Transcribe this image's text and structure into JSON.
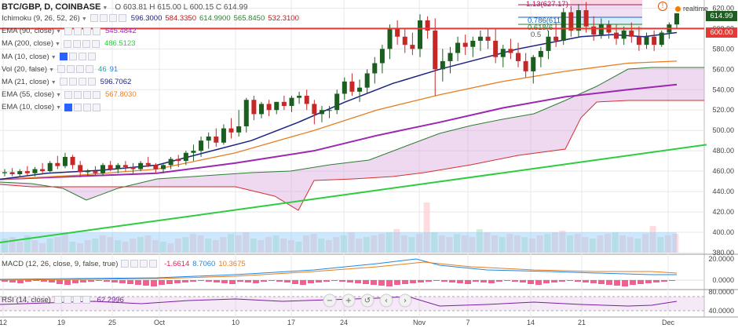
{
  "header": {
    "symbol": "BTC/GBP, D, COINBASE",
    "ohlc": "O 603.81 H 615.00 L 600.15 C 614.99"
  },
  "realtime_label": "realtime",
  "indicators": [
    {
      "name": "Ichimoku (9, 26, 52, 26)",
      "values": [
        "596.3000",
        "584.3350",
        "614.9900",
        "565.8450",
        "532.3100"
      ],
      "colors": [
        "#1a237e",
        "#b71c1c",
        "#2e7d32",
        "#2e7d32",
        "#b71c1c"
      ]
    },
    {
      "name": "EMA (90, close)",
      "values": [
        "545.4842"
      ],
      "colors": [
        "#9c27b0"
      ]
    },
    {
      "name": "MA (200, close)",
      "values": [
        "486.5123"
      ],
      "colors": [
        "#2ecc40"
      ]
    },
    {
      "name": "MA (10, close)",
      "values": [],
      "colors": []
    },
    {
      "name": "Vol (20, false)",
      "values": [
        "46",
        "91"
      ],
      "colors": [
        "#26a69a",
        "#1e88e5"
      ]
    },
    {
      "name": "MA (21, close)",
      "values": [
        "596.7062"
      ],
      "colors": [
        "#1a237e"
      ]
    },
    {
      "name": "EMA (55, close)",
      "values": [
        "567.8030"
      ],
      "colors": [
        "#e67e22"
      ]
    },
    {
      "name": "EMA (10, close)",
      "values": [],
      "colors": []
    }
  ],
  "fib_labels": [
    "1.13(627.17)",
    "0.786(611",
    "0.618(6",
    "0.5"
  ],
  "price_labels": {
    "last": "614.99",
    "level": "600.00"
  },
  "macd": {
    "label": "MACD (12, 26, close, 9, false, true)",
    "values": [
      "-1.6614",
      "8.7060",
      "10.3675"
    ],
    "colors": [
      "#e91e63",
      "#1e88e5",
      "#e67e22"
    ]
  },
  "rsi": {
    "label": "RSI (14, close)",
    "values": [
      "62.2996"
    ],
    "colors": [
      "#7b1fa2"
    ]
  },
  "colors": {
    "up": "#1b5e20",
    "down": "#c62828",
    "horizontal_line": "#e53935",
    "grid": "#e8e8e8"
  },
  "chart_data": {
    "type": "line",
    "subtype": "candlestick",
    "x_tick_labels": [
      "12",
      "19",
      "25",
      "Oct",
      "10",
      "17",
      "24",
      "Nov",
      "7",
      "14",
      "21",
      "Dec"
    ],
    "y_tick_labels": [
      "380.00",
      "400.00",
      "420.00",
      "440.00",
      "460.00",
      "480.00",
      "500.00",
      "520.00",
      "540.00",
      "560.00",
      "580.00",
      "600.00",
      "620.00"
    ],
    "ylim": [
      380,
      628
    ],
    "candles": [
      [
        458,
        462,
        455,
        459
      ],
      [
        459,
        463,
        455,
        457
      ],
      [
        457,
        462,
        454,
        460
      ],
      [
        460,
        465,
        456,
        458
      ],
      [
        458,
        464,
        455,
        462
      ],
      [
        462,
        468,
        458,
        460
      ],
      [
        460,
        470,
        459,
        468
      ],
      [
        468,
        475,
        462,
        465
      ],
      [
        465,
        478,
        463,
        474
      ],
      [
        474,
        476,
        462,
        466
      ],
      [
        466,
        470,
        454,
        459
      ],
      [
        459,
        462,
        455,
        460
      ],
      [
        460,
        465,
        456,
        458
      ],
      [
        458,
        468,
        456,
        466
      ],
      [
        466,
        470,
        460,
        462
      ],
      [
        462,
        468,
        458,
        466
      ],
      [
        466,
        470,
        460,
        464
      ],
      [
        464,
        468,
        458,
        462
      ],
      [
        462,
        470,
        460,
        468
      ],
      [
        468,
        474,
        464,
        466
      ],
      [
        466,
        468,
        458,
        462
      ],
      [
        462,
        468,
        458,
        466
      ],
      [
        466,
        474,
        462,
        472
      ],
      [
        472,
        476,
        464,
        470
      ],
      [
        470,
        480,
        466,
        478
      ],
      [
        478,
        486,
        470,
        480
      ],
      [
        480,
        494,
        474,
        490
      ],
      [
        490,
        498,
        482,
        494
      ],
      [
        494,
        502,
        484,
        488
      ],
      [
        488,
        506,
        486,
        502
      ],
      [
        502,
        512,
        492,
        498
      ],
      [
        498,
        520,
        494,
        504
      ],
      [
        504,
        532,
        498,
        530
      ],
      [
        530,
        534,
        510,
        516
      ],
      [
        516,
        528,
        512,
        526
      ],
      [
        526,
        530,
        514,
        520
      ],
      [
        520,
        528,
        516,
        528
      ],
      [
        528,
        534,
        520,
        524
      ],
      [
        524,
        534,
        518,
        532
      ],
      [
        532,
        538,
        526,
        534
      ],
      [
        534,
        540,
        520,
        526
      ],
      [
        526,
        530,
        506,
        516
      ],
      [
        516,
        524,
        508,
        520
      ],
      [
        520,
        524,
        512,
        520
      ],
      [
        520,
        540,
        516,
        536
      ],
      [
        536,
        552,
        530,
        548
      ],
      [
        548,
        556,
        534,
        538
      ],
      [
        538,
        550,
        528,
        542
      ],
      [
        542,
        560,
        536,
        556
      ],
      [
        556,
        572,
        546,
        566
      ],
      [
        566,
        584,
        556,
        580
      ],
      [
        580,
        604,
        570,
        600
      ],
      [
        600,
        608,
        584,
        592
      ],
      [
        592,
        600,
        576,
        584
      ],
      [
        584,
        596,
        574,
        580
      ],
      [
        580,
        614,
        572,
        608
      ],
      [
        608,
        612,
        590,
        598
      ],
      [
        598,
        610,
        534,
        560
      ],
      [
        560,
        580,
        548,
        568
      ],
      [
        568,
        582,
        556,
        576
      ],
      [
        576,
        592,
        568,
        586
      ],
      [
        586,
        594,
        574,
        582
      ],
      [
        582,
        592,
        572,
        588
      ],
      [
        588,
        598,
        578,
        592
      ],
      [
        592,
        600,
        580,
        588
      ],
      [
        588,
        600,
        566,
        572
      ],
      [
        572,
        584,
        562,
        580
      ],
      [
        580,
        590,
        570,
        576
      ],
      [
        576,
        586,
        562,
        568
      ],
      [
        568,
        576,
        552,
        558
      ],
      [
        558,
        574,
        546,
        572
      ],
      [
        572,
        582,
        562,
        578
      ],
      [
        578,
        598,
        570,
        592
      ],
      [
        592,
        606,
        582,
        588
      ],
      [
        588,
        620,
        584,
        616
      ],
      [
        616,
        622,
        592,
        598
      ],
      [
        598,
        624,
        592,
        618
      ],
      [
        618,
        626,
        596,
        602
      ],
      [
        602,
        612,
        588,
        594
      ],
      [
        594,
        610,
        590,
        604
      ],
      [
        604,
        608,
        590,
        596
      ],
      [
        596,
        604,
        584,
        590
      ],
      [
        590,
        602,
        584,
        598
      ],
      [
        598,
        606,
        586,
        592
      ],
      [
        592,
        602,
        578,
        584
      ],
      [
        584,
        596,
        580,
        592
      ],
      [
        592,
        598,
        578,
        584
      ],
      [
        584,
        598,
        582,
        596
      ],
      [
        596,
        606,
        590,
        604
      ],
      [
        604,
        615,
        600,
        614.99
      ]
    ],
    "series": [
      {
        "name": "MA (200, close)",
        "values": [
          [
            0,
            390
          ],
          [
            900,
            486
          ]
        ]
      },
      {
        "name": "EMA (90, close)",
        "values": [
          [
            0,
            452
          ],
          [
            100,
            455
          ],
          [
            200,
            458
          ],
          [
            300,
            468
          ],
          [
            400,
            480
          ],
          [
            480,
            495
          ],
          [
            560,
            508
          ],
          [
            640,
            522
          ],
          [
            720,
            533
          ],
          [
            800,
            540
          ],
          [
            862,
            545
          ]
        ]
      },
      {
        "name": "EMA (55, close)",
        "values": [
          [
            0,
            452
          ],
          [
            100,
            456
          ],
          [
            200,
            462
          ],
          [
            300,
            478
          ],
          [
            400,
            500
          ],
          [
            480,
            520
          ],
          [
            560,
            535
          ],
          [
            640,
            548
          ],
          [
            720,
            558
          ],
          [
            800,
            566
          ],
          [
            862,
            568
          ]
        ]
      },
      {
        "name": "MA (21, close)",
        "values": [
          [
            0,
            452
          ],
          [
            60,
            458
          ],
          [
            130,
            461
          ],
          [
            200,
            466
          ],
          [
            260,
            478
          ],
          [
            320,
            490
          ],
          [
            380,
            508
          ],
          [
            440,
            528
          ],
          [
            500,
            546
          ],
          [
            560,
            560
          ],
          [
            620,
            572
          ],
          [
            660,
            580
          ],
          [
            700,
            586
          ],
          [
            740,
            592
          ],
          [
            780,
            594
          ],
          [
            820,
            592
          ],
          [
            862,
            596
          ]
        ]
      }
    ]
  }
}
